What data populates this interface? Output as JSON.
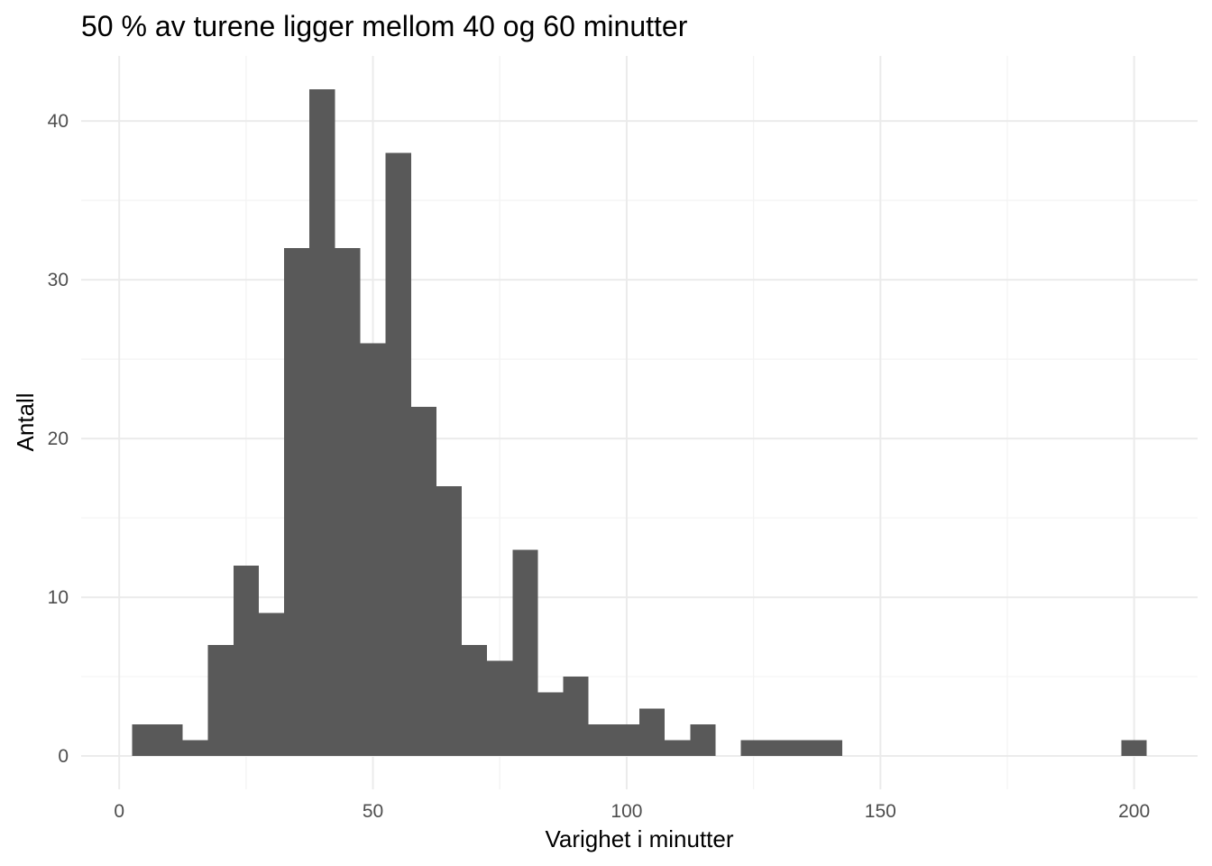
{
  "chart_data": {
    "type": "bar",
    "title": "50 % av turene ligger mellom 40 og 60 minutter",
    "xlabel": "Varighet i minutter",
    "ylabel": "Antall",
    "xlim": [
      -7.5,
      212.5
    ],
    "ylim": [
      -2.1,
      44.1
    ],
    "x_ticks": [
      0,
      50,
      100,
      150,
      200
    ],
    "y_ticks": [
      0,
      10,
      20,
      30,
      40
    ],
    "x_tick_labels": [
      "0",
      "50",
      "100",
      "150",
      "200"
    ],
    "y_tick_labels": [
      "0",
      "10",
      "20",
      "30",
      "40"
    ],
    "bin_width": 5,
    "bin_centers": [
      5,
      10,
      15,
      20,
      25,
      30,
      35,
      40,
      45,
      50,
      55,
      60,
      65,
      70,
      75,
      80,
      85,
      90,
      95,
      100,
      105,
      110,
      115,
      120,
      125,
      130,
      135,
      140,
      145,
      150,
      155,
      160,
      165,
      170,
      175,
      180,
      185,
      190,
      195,
      200
    ],
    "values": [
      2,
      2,
      1,
      7,
      12,
      9,
      32,
      42,
      32,
      26,
      38,
      22,
      17,
      7,
      6,
      13,
      4,
      5,
      2,
      2,
      3,
      1,
      2,
      0,
      1,
      1,
      1,
      1,
      0,
      0,
      0,
      0,
      0,
      0,
      0,
      0,
      0,
      0,
      0,
      1
    ],
    "bar_color": "#595959",
    "grid": true,
    "legend": "none"
  }
}
